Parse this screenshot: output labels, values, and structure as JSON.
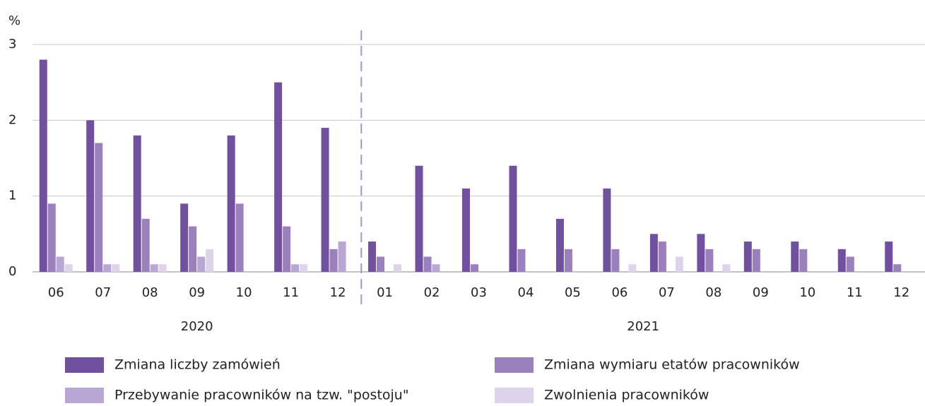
{
  "chart_data": {
    "type": "bar",
    "y_unit": "%",
    "categories": [
      "06",
      "07",
      "08",
      "09",
      "10",
      "11",
      "12",
      "01",
      "02",
      "03",
      "04",
      "05",
      "06",
      "07",
      "08",
      "09",
      "10",
      "11",
      "12"
    ],
    "x_groups": [
      {
        "label": "2020",
        "start": 0,
        "end": 6
      },
      {
        "label": "2021",
        "start": 7,
        "end": 18
      }
    ],
    "series": [
      {
        "name": "Zmiana liczby zamówień",
        "color": "#7150a0",
        "values": [
          2.8,
          2.0,
          1.8,
          0.9,
          1.8,
          2.5,
          1.9,
          0.4,
          1.4,
          1.1,
          1.4,
          0.7,
          1.1,
          0.5,
          0.5,
          0.4,
          0.4,
          0.3,
          0.4
        ]
      },
      {
        "name": "Zmiana wymiaru etatów pracowników",
        "color": "#9a80bc",
        "values": [
          0.9,
          1.7,
          0.7,
          0.6,
          0.9,
          0.6,
          0.3,
          0.2,
          0.2,
          0.1,
          0.3,
          0.3,
          0.3,
          0.4,
          0.3,
          0.3,
          0.3,
          0.2,
          0.1
        ]
      },
      {
        "name": "Przebywanie pracowników na tzw. \"postoju\"",
        "color": "#b8a6d4",
        "values": [
          0.2,
          0.1,
          0.1,
          0.2,
          0,
          0.1,
          0.4,
          0,
          0.1,
          0,
          0,
          0,
          0,
          0,
          0,
          0,
          0,
          0,
          0
        ]
      },
      {
        "name": "Zwolnienia pracowników",
        "color": "#ddd3ea",
        "values": [
          0.1,
          0.1,
          0.1,
          0.3,
          0,
          0.1,
          0,
          0.1,
          0,
          0,
          0,
          0,
          0.1,
          0.2,
          0.1,
          0,
          0,
          0,
          0
        ]
      }
    ],
    "ylim": [
      0,
      3
    ],
    "yticks": [
      0,
      1,
      2,
      3
    ],
    "grid": true
  }
}
